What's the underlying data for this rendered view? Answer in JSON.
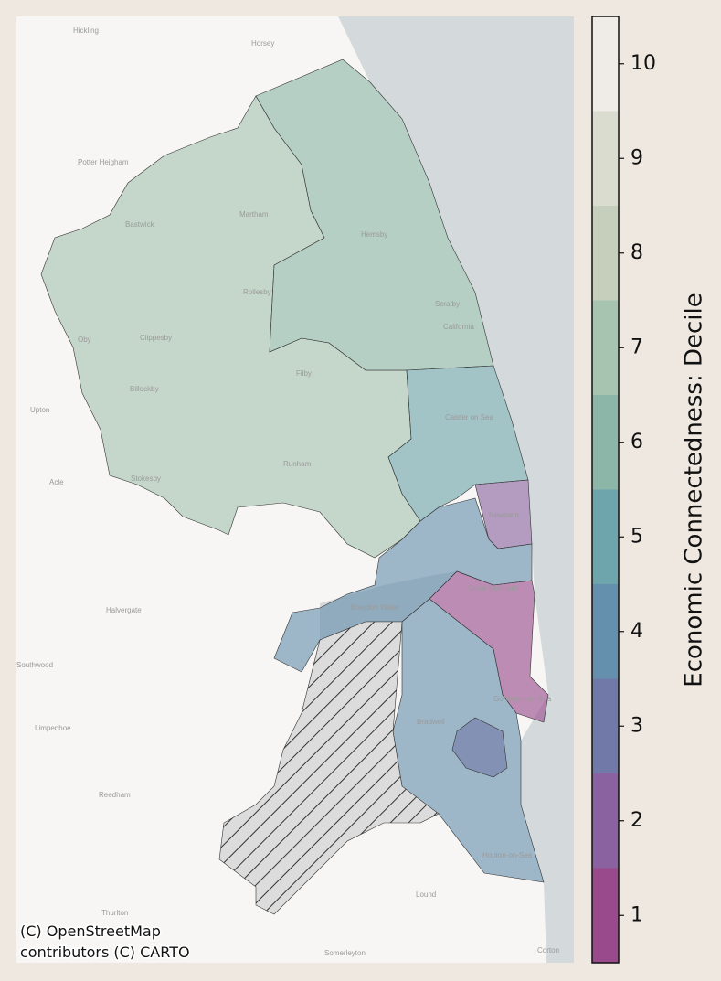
{
  "map": {
    "places": [
      "Hickling",
      "Horsey",
      "Potter Heigham",
      "Bastwick",
      "Martham",
      "Hemsby",
      "Rollesby",
      "Scratby",
      "California",
      "Oby",
      "Clippesby",
      "Filby",
      "Billockby",
      "Upton",
      "Caister on Sea",
      "Acle",
      "Stokesby",
      "Runham",
      "Halvergate",
      "Breydon Water",
      "Great Yarmouth",
      "Newtown",
      "Southwood",
      "Limpenhoe",
      "Bradwell",
      "Gorleston-on-Sea",
      "Reedham",
      "Hopton-on-Sea",
      "Thurlton",
      "Lound",
      "Somerleyton",
      "Corton"
    ],
    "regions": [
      7,
      6,
      5,
      2,
      4,
      1,
      4,
      3,
      null
    ],
    "attribution": [
      "(C) OpenStreetMap",
      "contributors (C) CARTO"
    ]
  },
  "colorbar": {
    "label": "Economic Connectedness: Decile",
    "clim": [
      0.5,
      10.5
    ],
    "ticks": [
      1,
      2,
      3,
      4,
      5,
      6,
      7,
      8,
      9,
      10
    ],
    "colors": [
      "#994a8c",
      "#8a62a0",
      "#7179a8",
      "#6590ad",
      "#6ea4ab",
      "#8cb6a8",
      "#a7c4b0",
      "#c5cfbc",
      "#dbdcd0",
      "#efebe6"
    ]
  }
}
